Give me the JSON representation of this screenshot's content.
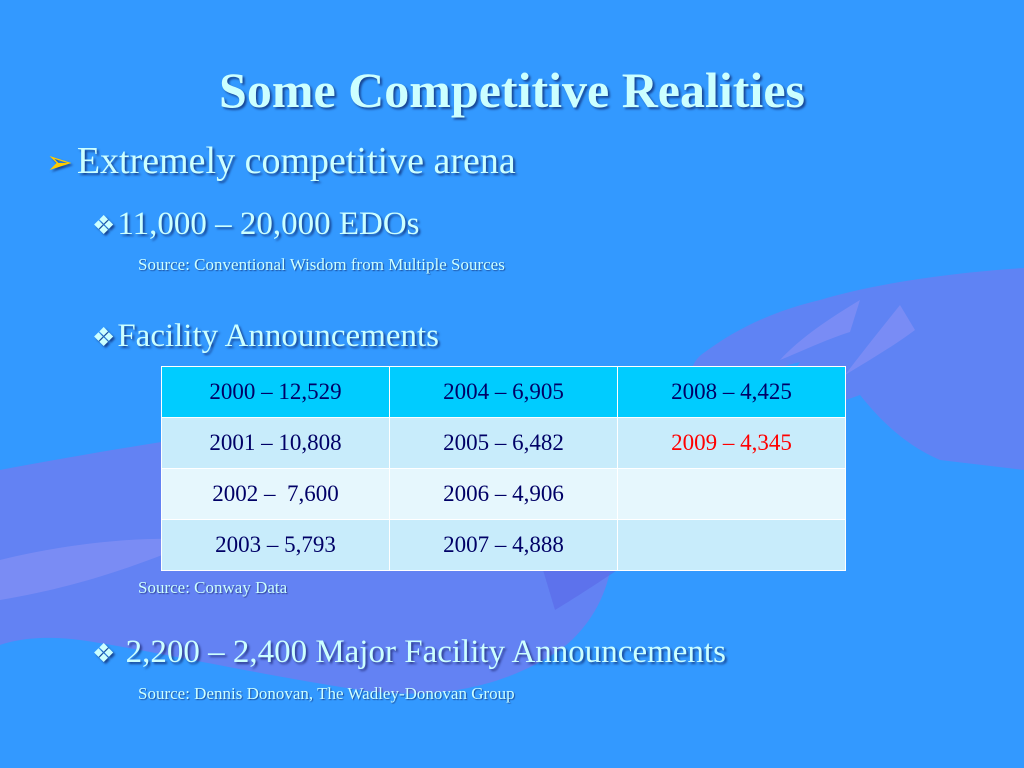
{
  "slide": {
    "title": "Some Competitive Realities",
    "bullet_main": "Extremely competitive arena",
    "sub1": {
      "text": "11,000 – 20,000 EDOs",
      "source": "Source: Conventional Wisdom from Multiple Sources"
    },
    "sub2": {
      "text": "Facility Announcements",
      "table": {
        "rows": [
          [
            "2000 – 12,529",
            "2004 – 6,905",
            "2008 – 4,425"
          ],
          [
            "2001 – 10,808",
            "2005 – 6,482",
            "2009 – 4,345"
          ],
          [
            "2002 –  7,600",
            "2006 – 4,906",
            ""
          ],
          [
            "2003 – 5,793",
            "2007 – 4,888",
            ""
          ]
        ],
        "highlight_color": "#ff0000"
      },
      "source": "Source: Conway Data"
    },
    "sub3": {
      "text": " 2,200 – 2,400 Major Facility Announcements",
      "source": "Source: Dennis Donovan, The Wadley-Donovan Group"
    }
  },
  "colors": {
    "background": "#3399ff",
    "text": "#ccffff",
    "arrow": "#ffcc00",
    "table_header": "#00ccff"
  },
  "icons": {
    "bullet_main": "arrow-bullet-icon",
    "bullet_sub": "diamond-bullet-icon"
  }
}
